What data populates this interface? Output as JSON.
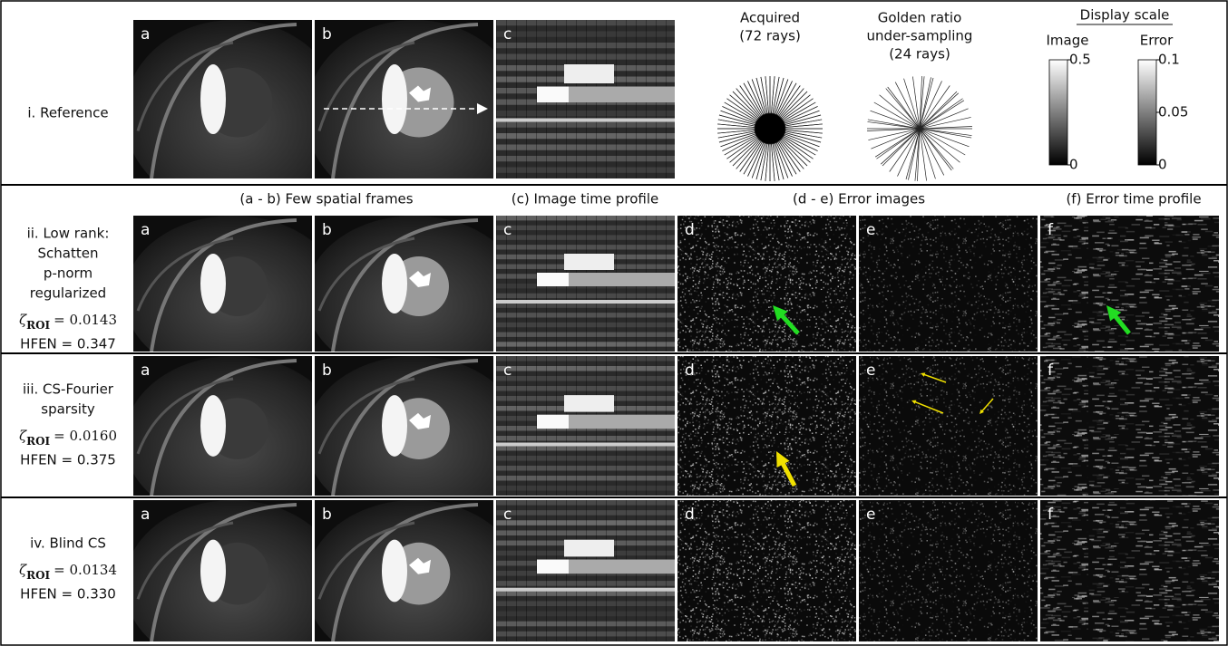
{
  "reference": {
    "label": "i. Reference",
    "panels": [
      "a",
      "b",
      "c"
    ]
  },
  "sampling": [
    {
      "lines": [
        "Acquired",
        "(72 rays)"
      ]
    },
    {
      "lines": [
        "Golden ratio",
        "under-sampling",
        "(24 rays)"
      ]
    }
  ],
  "display_scale": {
    "title": "Display scale",
    "image": {
      "label": "Image",
      "ticks": [
        0.5,
        0
      ]
    },
    "error": {
      "label": "Error",
      "ticks": [
        0.1,
        0.05,
        0
      ]
    }
  },
  "column_headers": [
    "(a - b) Few spatial frames",
    "(c) Image time profile",
    "(d - e) Error images",
    "(f) Error time profile"
  ],
  "methods": [
    {
      "label_lines": [
        "ii. Low rank:",
        "Schatten",
        "p-norm",
        "regularized"
      ],
      "zeta_symbol": "ζ",
      "zeta_sub": "ROI",
      "zeta_value": "= 0.0143",
      "hfen": "HFEN = 0.347",
      "panels": [
        "a",
        "b",
        "c",
        "d",
        "e",
        "f"
      ]
    },
    {
      "label_lines": [
        "iii. CS-Fourier",
        "sparsity"
      ],
      "zeta_symbol": "ζ",
      "zeta_sub": "ROI",
      "zeta_value": "= 0.0160",
      "hfen": "HFEN = 0.375",
      "panels": [
        "a",
        "b",
        "c",
        "d",
        "e",
        "f"
      ]
    },
    {
      "label_lines": [
        "iv. Blind CS"
      ],
      "zeta_symbol": "ζ",
      "zeta_sub": "ROI",
      "zeta_value": "= 0.0134",
      "hfen": "HFEN = 0.330",
      "panels": [
        "a",
        "b",
        "c",
        "d",
        "e",
        "f"
      ]
    }
  ]
}
